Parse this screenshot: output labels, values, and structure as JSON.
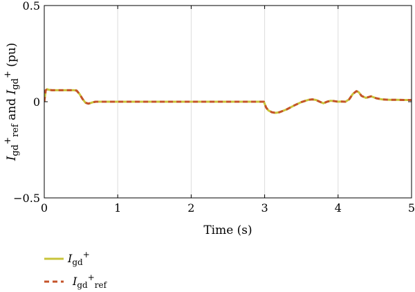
{
  "chart_data": {
    "type": "line",
    "xlabel": "Time (s)",
    "ylabel": {
      "parts": [
        {
          "text": "I",
          "italic": true
        },
        {
          "text": "gd",
          "sub": true
        },
        {
          "text": "+",
          "sup": true
        },
        {
          "text": "ref",
          "sub": true
        },
        {
          "text": " and "
        },
        {
          "text": "I",
          "italic": true
        },
        {
          "text": "gd",
          "sub": true
        },
        {
          "text": "+",
          "sup": true
        },
        {
          "text": " (pu)"
        }
      ]
    },
    "xlim": [
      0,
      5
    ],
    "ylim": [
      -0.5,
      0.5
    ],
    "xticks": [
      0,
      1,
      2,
      3,
      4,
      5
    ],
    "xtick_labels": [
      "0",
      "1",
      "2",
      "3",
      "4",
      "5"
    ],
    "yticks": [
      -0.5,
      0,
      0.5
    ],
    "ytick_labels": [
      "−0.5",
      "0",
      "0.5"
    ],
    "grid": "vertical",
    "legend_position": "bottom-left",
    "series": [
      {
        "name": "Igd+",
        "style": "solid",
        "color": "#c8c43a",
        "x": [
          0,
          0.02,
          0.04,
          0.06,
          0.1,
          0.2,
          0.3,
          0.4,
          0.44,
          0.48,
          0.52,
          0.56,
          0.6,
          0.63,
          0.66,
          0.7,
          0.75,
          0.8,
          0.9,
          1.0,
          2.0,
          2.99,
          3.0,
          3.02,
          3.05,
          3.1,
          3.15,
          3.2,
          3.3,
          3.4,
          3.5,
          3.6,
          3.65,
          3.7,
          3.75,
          3.8,
          3.85,
          3.9,
          3.95,
          4.0,
          4.05,
          4.1,
          4.15,
          4.2,
          4.25,
          4.28,
          4.32,
          4.38,
          4.45,
          4.52,
          4.6,
          4.7,
          4.8,
          4.9,
          5.0
        ],
        "y": [
          0.0,
          0.06,
          0.065,
          0.062,
          0.06,
          0.06,
          0.06,
          0.06,
          0.058,
          0.04,
          0.015,
          -0.005,
          -0.01,
          -0.007,
          -0.003,
          0.0,
          0.0,
          0.0,
          0.0,
          0.0,
          0.0,
          0.0,
          -0.01,
          -0.03,
          -0.045,
          -0.055,
          -0.058,
          -0.055,
          -0.04,
          -0.02,
          -0.002,
          0.01,
          0.012,
          0.009,
          0.0,
          -0.008,
          0.0,
          0.005,
          0.003,
          0.0,
          0.001,
          0.0,
          0.012,
          0.04,
          0.055,
          0.05,
          0.03,
          0.02,
          0.028,
          0.018,
          0.012,
          0.01,
          0.01,
          0.009,
          0.009
        ]
      },
      {
        "name": "Igd+ref",
        "style": "dashed",
        "color": "#c4532a",
        "x": [
          0,
          0.02,
          0.04,
          0.06,
          0.1,
          0.2,
          0.3,
          0.4,
          0.44,
          0.48,
          0.52,
          0.56,
          0.6,
          0.63,
          0.66,
          0.7,
          0.75,
          0.8,
          0.9,
          1.0,
          2.0,
          2.99,
          3.0,
          3.02,
          3.05,
          3.1,
          3.15,
          3.2,
          3.3,
          3.4,
          3.5,
          3.6,
          3.65,
          3.7,
          3.75,
          3.8,
          3.85,
          3.9,
          3.95,
          4.0,
          4.05,
          4.1,
          4.15,
          4.2,
          4.25,
          4.28,
          4.32,
          4.38,
          4.45,
          4.52,
          4.6,
          4.7,
          4.8,
          4.9,
          5.0
        ],
        "y": [
          0.0,
          0.06,
          0.065,
          0.062,
          0.06,
          0.06,
          0.06,
          0.06,
          0.058,
          0.04,
          0.015,
          -0.005,
          -0.01,
          -0.007,
          -0.003,
          0.0,
          0.0,
          0.0,
          0.0,
          0.0,
          0.0,
          0.0,
          -0.01,
          -0.03,
          -0.045,
          -0.055,
          -0.058,
          -0.055,
          -0.04,
          -0.02,
          -0.002,
          0.01,
          0.012,
          0.009,
          0.0,
          -0.008,
          0.0,
          0.005,
          0.003,
          0.0,
          0.001,
          0.0,
          0.012,
          0.04,
          0.055,
          0.05,
          0.03,
          0.02,
          0.028,
          0.018,
          0.012,
          0.01,
          0.01,
          0.009,
          0.009
        ]
      }
    ],
    "legend": [
      {
        "parts": [
          {
            "text": "I",
            "italic": true
          },
          {
            "text": "gd",
            "sub": true
          },
          {
            "text": "+",
            "sup": true
          }
        ]
      },
      {
        "parts": [
          {
            "text": "I",
            "italic": true
          },
          {
            "text": "gd",
            "sub": true
          },
          {
            "text": "+",
            "sup": true
          },
          {
            "text": "ref",
            "sub": true
          }
        ]
      }
    ]
  }
}
